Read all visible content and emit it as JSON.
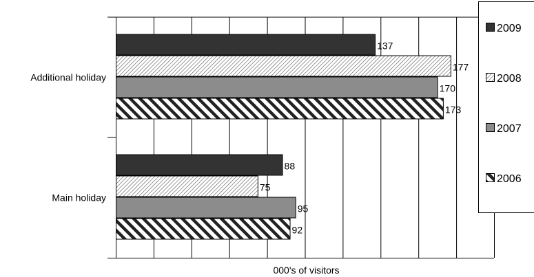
{
  "chart_data": {
    "type": "bar",
    "orientation": "horizontal",
    "categories": [
      "Additional holiday",
      "Main holiday"
    ],
    "series": [
      {
        "name": "2009",
        "values": [
          137,
          88
        ],
        "fill": "#333333"
      },
      {
        "name": "2008",
        "values": [
          177,
          75
        ],
        "fill": "fine-diagonal-hatch"
      },
      {
        "name": "2007",
        "values": [
          170,
          95
        ],
        "fill": "#8c8c8c"
      },
      {
        "name": "2006",
        "values": [
          173,
          92
        ],
        "fill": "bold-diagonal-stripes"
      }
    ],
    "title": "",
    "xlabel": "000's of visitors",
    "ylabel": "",
    "xlim": [
      0,
      200
    ],
    "grid": "vertical",
    "legend": "right"
  }
}
